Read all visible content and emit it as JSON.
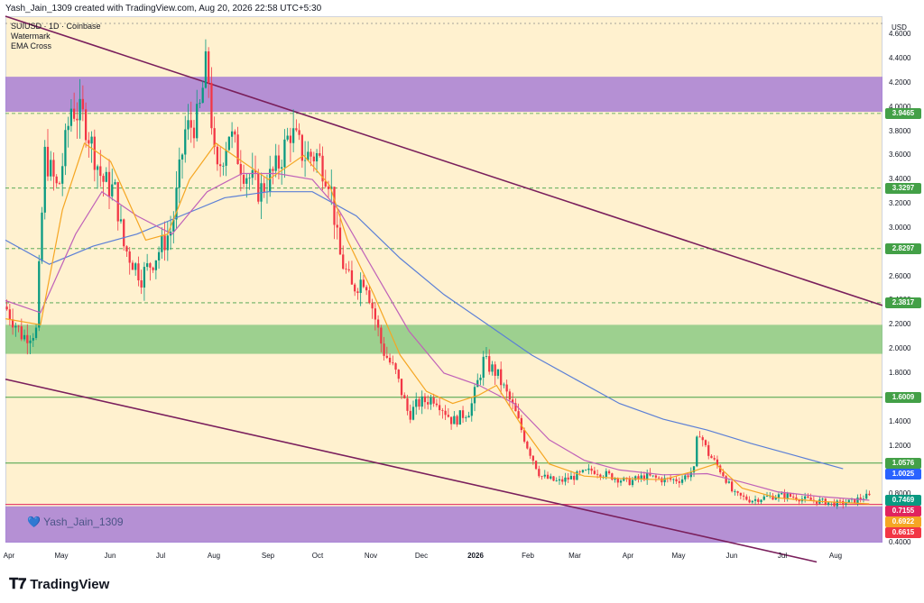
{
  "header_text": "Yash_Jain_1309 created with TradingView.com, Aug 20, 2026 22:58 UTC+5:30",
  "legend": {
    "symbol": "SUIUSD · 1D · Coinbase",
    "line2": "Watermark",
    "line3": "EMA Cross"
  },
  "watermark_text": "Yash_Jain_1309",
  "currency": "USD",
  "logo_text": "TradingView",
  "colors": {
    "up": "#089981",
    "down": "#f23645",
    "ema_fast": "#f5a623",
    "ema_mid": "#c062b8",
    "ema_slow": "#5b7fd6",
    "trendline": "#7a1f5c",
    "zone_purple": "#9c6fd6",
    "zone_green": "#7cc47a"
  },
  "chart_data": {
    "type": "candlestick",
    "ylim": [
      0.4,
      4.75
    ],
    "y_ticks": [
      "4.6000",
      "4.4000",
      "4.2000",
      "4.0000",
      "3.8000",
      "3.6000",
      "3.4000",
      "3.2000",
      "3.0000",
      "2.8000",
      "2.6000",
      "2.4000",
      "2.2000",
      "2.0000",
      "1.8000",
      "1.6000",
      "1.4000",
      "1.2000",
      "1.0000",
      "0.8000",
      "0.6000",
      "0.4000"
    ],
    "x_labels": [
      "Apr",
      "May",
      "Jun",
      "Jul",
      "Aug",
      "Sep",
      "Oct",
      "Nov",
      "Dec",
      "2026",
      "Feb",
      "Mar",
      "Apr",
      "May",
      "Jun",
      "Jul",
      "Aug"
    ],
    "price_levels": [
      {
        "value": 3.9465,
        "label": "3.9465",
        "color": "#43a047",
        "line": "dashed"
      },
      {
        "value": 3.3297,
        "label": "3.3297",
        "color": "#43a047",
        "line": "dashed"
      },
      {
        "value": 2.8297,
        "label": "2.8297",
        "color": "#43a047",
        "line": "dashed"
      },
      {
        "value": 2.3817,
        "label": "2.3817",
        "color": "#43a047",
        "line": "dashed"
      },
      {
        "value": 1.6009,
        "label": "1.6009",
        "color": "#43a047",
        "line": "solid"
      },
      {
        "value": 1.0576,
        "label": "1.0576",
        "color": "#43a047",
        "line": "solid"
      },
      {
        "value": 1.0025,
        "label": "1.0025",
        "color": "#2962ff",
        "line": "none"
      },
      {
        "value": 0.7469,
        "label": "0.7469",
        "color": "#089981",
        "line": "none"
      },
      {
        "value": 0.7155,
        "label": "0.7155",
        "color": "#e0245e",
        "line": "solid"
      },
      {
        "value": 0.6922,
        "label": "0.6922",
        "color": "#f5a623",
        "line": "none"
      },
      {
        "value": 0.6615,
        "label": "0.6615",
        "color": "#f23645",
        "line": "none"
      }
    ],
    "zones": [
      {
        "from": 3.96,
        "to": 4.25,
        "color": "#9c6fd6"
      },
      {
        "from": 1.96,
        "to": 2.2,
        "color": "#7cc47a"
      },
      {
        "from": 0.4,
        "to": 0.7,
        "color": "#9c6fd6"
      }
    ],
    "trendlines": [
      {
        "x1": 0.0,
        "y1": 4.75,
        "x2": 1.0,
        "y2": 2.36
      },
      {
        "x1": 0.0,
        "y1": 1.75,
        "x2": 0.925,
        "y2": 0.24
      }
    ],
    "close_path": [
      [
        0.0,
        2.35
      ],
      [
        0.02,
        2.1
      ],
      [
        0.035,
        2.15
      ],
      [
        0.045,
        3.6
      ],
      [
        0.06,
        3.3
      ],
      [
        0.075,
        4.0
      ],
      [
        0.09,
        3.9
      ],
      [
        0.11,
        3.4
      ],
      [
        0.125,
        3.3
      ],
      [
        0.135,
        2.85
      ],
      [
        0.155,
        2.6
      ],
      [
        0.17,
        2.75
      ],
      [
        0.19,
        3.0
      ],
      [
        0.205,
        3.8
      ],
      [
        0.22,
        3.9
      ],
      [
        0.23,
        4.4
      ],
      [
        0.24,
        3.4
      ],
      [
        0.255,
        3.8
      ],
      [
        0.27,
        3.5
      ],
      [
        0.29,
        3.3
      ],
      [
        0.31,
        3.5
      ],
      [
        0.325,
        3.8
      ],
      [
        0.34,
        3.6
      ],
      [
        0.355,
        3.6
      ],
      [
        0.37,
        3.4
      ],
      [
        0.38,
        2.8
      ],
      [
        0.395,
        2.5
      ],
      [
        0.41,
        2.6
      ],
      [
        0.43,
        2.0
      ],
      [
        0.445,
        1.8
      ],
      [
        0.46,
        1.45
      ],
      [
        0.47,
        1.55
      ],
      [
        0.49,
        1.6
      ],
      [
        0.51,
        1.4
      ],
      [
        0.53,
        1.5
      ],
      [
        0.545,
        1.9
      ],
      [
        0.56,
        1.8
      ],
      [
        0.58,
        1.5
      ],
      [
        0.595,
        1.2
      ],
      [
        0.61,
        0.95
      ],
      [
        0.63,
        0.9
      ],
      [
        0.65,
        0.95
      ],
      [
        0.67,
        1.0
      ],
      [
        0.69,
        0.95
      ],
      [
        0.71,
        0.9
      ],
      [
        0.73,
        0.95
      ],
      [
        0.75,
        0.92
      ],
      [
        0.77,
        0.92
      ],
      [
        0.785,
        1.0
      ],
      [
        0.79,
        1.35
      ],
      [
        0.8,
        1.15
      ],
      [
        0.81,
        1.05
      ],
      [
        0.82,
        0.95
      ],
      [
        0.83,
        0.8
      ],
      [
        0.85,
        0.75
      ],
      [
        0.87,
        0.78
      ],
      [
        0.89,
        0.79
      ],
      [
        0.91,
        0.76
      ],
      [
        0.93,
        0.74
      ],
      [
        0.95,
        0.72
      ],
      [
        0.965,
        0.74
      ],
      [
        0.98,
        0.78
      ]
    ],
    "ema_fast": [
      [
        0.0,
        2.25
      ],
      [
        0.04,
        2.2
      ],
      [
        0.065,
        3.15
      ],
      [
        0.09,
        3.7
      ],
      [
        0.12,
        3.55
      ],
      [
        0.16,
        2.9
      ],
      [
        0.185,
        2.95
      ],
      [
        0.21,
        3.4
      ],
      [
        0.24,
        3.7
      ],
      [
        0.27,
        3.55
      ],
      [
        0.3,
        3.4
      ],
      [
        0.34,
        3.6
      ],
      [
        0.37,
        3.35
      ],
      [
        0.39,
        2.9
      ],
      [
        0.42,
        2.45
      ],
      [
        0.45,
        1.95
      ],
      [
        0.48,
        1.65
      ],
      [
        0.51,
        1.55
      ],
      [
        0.54,
        1.62
      ],
      [
        0.56,
        1.7
      ],
      [
        0.59,
        1.35
      ],
      [
        0.62,
        1.05
      ],
      [
        0.66,
        0.95
      ],
      [
        0.7,
        0.93
      ],
      [
        0.75,
        0.92
      ],
      [
        0.78,
        0.98
      ],
      [
        0.81,
        1.05
      ],
      [
        0.84,
        0.85
      ],
      [
        0.88,
        0.77
      ],
      [
        0.93,
        0.74
      ],
      [
        0.985,
        0.72
      ]
    ],
    "ema_mid": [
      [
        0.0,
        2.4
      ],
      [
        0.04,
        2.3
      ],
      [
        0.08,
        2.95
      ],
      [
        0.11,
        3.3
      ],
      [
        0.15,
        3.1
      ],
      [
        0.19,
        2.95
      ],
      [
        0.23,
        3.3
      ],
      [
        0.27,
        3.45
      ],
      [
        0.31,
        3.45
      ],
      [
        0.35,
        3.4
      ],
      [
        0.38,
        3.15
      ],
      [
        0.42,
        2.65
      ],
      [
        0.46,
        2.15
      ],
      [
        0.5,
        1.8
      ],
      [
        0.54,
        1.7
      ],
      [
        0.58,
        1.55
      ],
      [
        0.62,
        1.25
      ],
      [
        0.66,
        1.08
      ],
      [
        0.7,
        1.0
      ],
      [
        0.75,
        0.96
      ],
      [
        0.8,
        0.97
      ],
      [
        0.84,
        0.9
      ],
      [
        0.88,
        0.82
      ],
      [
        0.93,
        0.78
      ],
      [
        0.985,
        0.75
      ]
    ],
    "ema_slow": [
      [
        0.0,
        2.9
      ],
      [
        0.05,
        2.7
      ],
      [
        0.1,
        2.85
      ],
      [
        0.15,
        2.95
      ],
      [
        0.2,
        3.1
      ],
      [
        0.25,
        3.25
      ],
      [
        0.3,
        3.3
      ],
      [
        0.35,
        3.3
      ],
      [
        0.4,
        3.1
      ],
      [
        0.45,
        2.75
      ],
      [
        0.5,
        2.45
      ],
      [
        0.55,
        2.2
      ],
      [
        0.6,
        1.95
      ],
      [
        0.65,
        1.75
      ],
      [
        0.7,
        1.55
      ],
      [
        0.75,
        1.42
      ],
      [
        0.8,
        1.33
      ],
      [
        0.85,
        1.22
      ],
      [
        0.9,
        1.12
      ],
      [
        0.955,
        1.01
      ]
    ]
  }
}
